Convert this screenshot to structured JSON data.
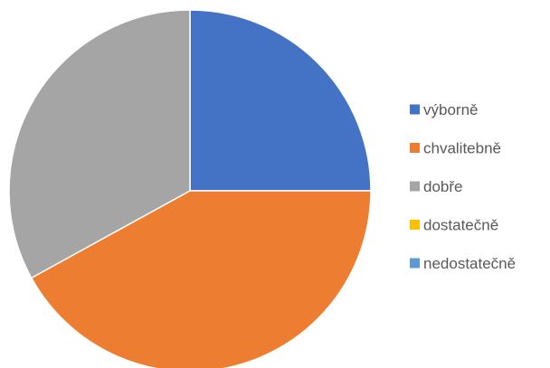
{
  "chart_data": {
    "type": "pie",
    "title": "",
    "legend_position": "right",
    "slices": [
      {
        "label": "výborně",
        "value": 25,
        "color": "#4472C4"
      },
      {
        "label": "chvalitebně",
        "value": 42,
        "color": "#ED7D31"
      },
      {
        "label": "dobře",
        "value": 33,
        "color": "#A5A5A5"
      },
      {
        "label": "dostatečně",
        "value": 0,
        "color": "#FFC000"
      },
      {
        "label": "nedostatečně",
        "value": 0,
        "color": "#5B9BD5"
      }
    ]
  }
}
